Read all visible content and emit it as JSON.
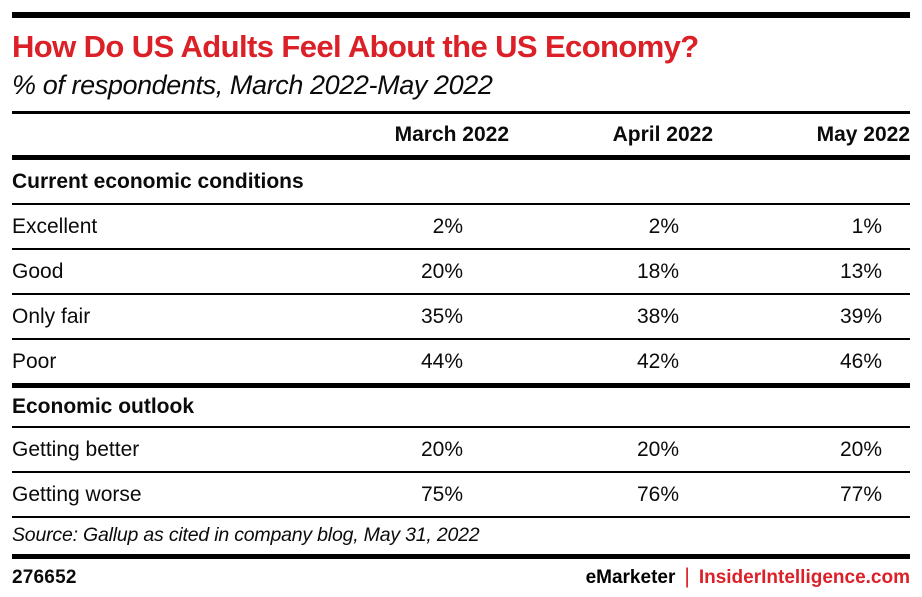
{
  "header": {
    "title": "How Do US Adults Feel About the US Economy?",
    "subtitle": "% of respondents, March 2022-May 2022"
  },
  "table": {
    "columns": [
      "March 2022",
      "April 2022",
      "May 2022"
    ],
    "sections": [
      {
        "title": "Current economic conditions",
        "rows": [
          {
            "label": "Excellent",
            "values": [
              "2%",
              "2%",
              "1%"
            ]
          },
          {
            "label": "Good",
            "values": [
              "20%",
              "18%",
              "13%"
            ]
          },
          {
            "label": "Only fair",
            "values": [
              "35%",
              "38%",
              "39%"
            ]
          },
          {
            "label": "Poor",
            "values": [
              "44%",
              "42%",
              "46%"
            ]
          }
        ]
      },
      {
        "title": "Economic outlook",
        "rows": [
          {
            "label": "Getting better",
            "values": [
              "20%",
              "20%",
              "20%"
            ]
          },
          {
            "label": "Getting worse",
            "values": [
              "75%",
              "76%",
              "77%"
            ]
          }
        ]
      }
    ]
  },
  "footer": {
    "source": "Source: Gallup as cited in company blog, May 31, 2022",
    "chart_id": "276652",
    "brand_left": "eMarketer",
    "separator": "|",
    "brand_right": "InsiderIntelligence.com"
  },
  "colors": {
    "accent_red": "#db2028",
    "text": "#0b0b0b",
    "rule": "#000000"
  },
  "chart_data": {
    "type": "table",
    "title": "How Do US Adults Feel About the US Economy?",
    "subtitle": "% of respondents, March 2022-May 2022",
    "unit": "%",
    "categories": [
      "March 2022",
      "April 2022",
      "May 2022"
    ],
    "sections": [
      {
        "name": "Current economic conditions",
        "series": [
          {
            "name": "Excellent",
            "values": [
              2,
              2,
              1
            ]
          },
          {
            "name": "Good",
            "values": [
              20,
              18,
              13
            ]
          },
          {
            "name": "Only fair",
            "values": [
              35,
              38,
              39
            ]
          },
          {
            "name": "Poor",
            "values": [
              44,
              42,
              46
            ]
          }
        ]
      },
      {
        "name": "Economic outlook",
        "series": [
          {
            "name": "Getting better",
            "values": [
              20,
              20,
              20
            ]
          },
          {
            "name": "Getting worse",
            "values": [
              75,
              76,
              77
            ]
          }
        ]
      }
    ],
    "source": "Gallup as cited in company blog, May 31, 2022",
    "chart_id": "276652"
  }
}
